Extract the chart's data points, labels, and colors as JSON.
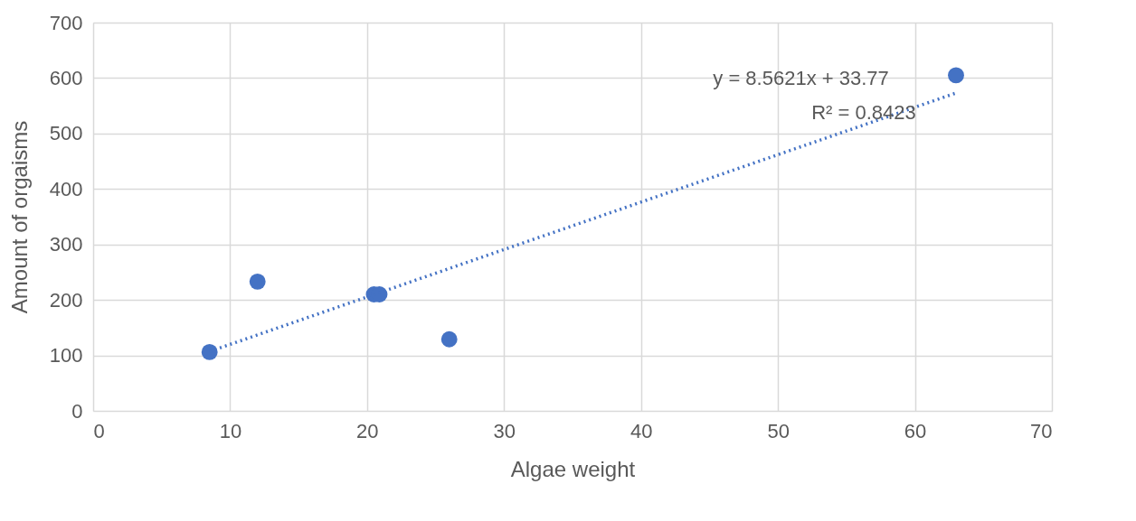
{
  "chart_data": {
    "type": "scatter",
    "xlabel": "Algae weight",
    "ylabel": "Amount of orgaisms",
    "xlim": [
      0,
      70
    ],
    "xticks": [
      0,
      10,
      20,
      30,
      40,
      50,
      60,
      70
    ],
    "ylim": [
      0,
      700
    ],
    "yticks": [
      0,
      100,
      200,
      300,
      400,
      500,
      600,
      700
    ],
    "grid": true,
    "marker": "circle",
    "series": [
      {
        "color": "#4472c4",
        "x": [
          8.5,
          12,
          20.5,
          20.9,
          26,
          63
        ],
        "values": [
          106,
          233,
          210,
          210,
          129,
          605
        ]
      },
      {
        "type": "line",
        "color": "#4472c4",
        "line_style": "dotted",
        "marker": "none",
        "x": [
          8.5,
          63
        ],
        "values": [
          107,
          573
        ]
      }
    ],
    "annotations": [
      "y = 8.5621x + 33.77",
      "R² = 0.8423"
    ]
  }
}
